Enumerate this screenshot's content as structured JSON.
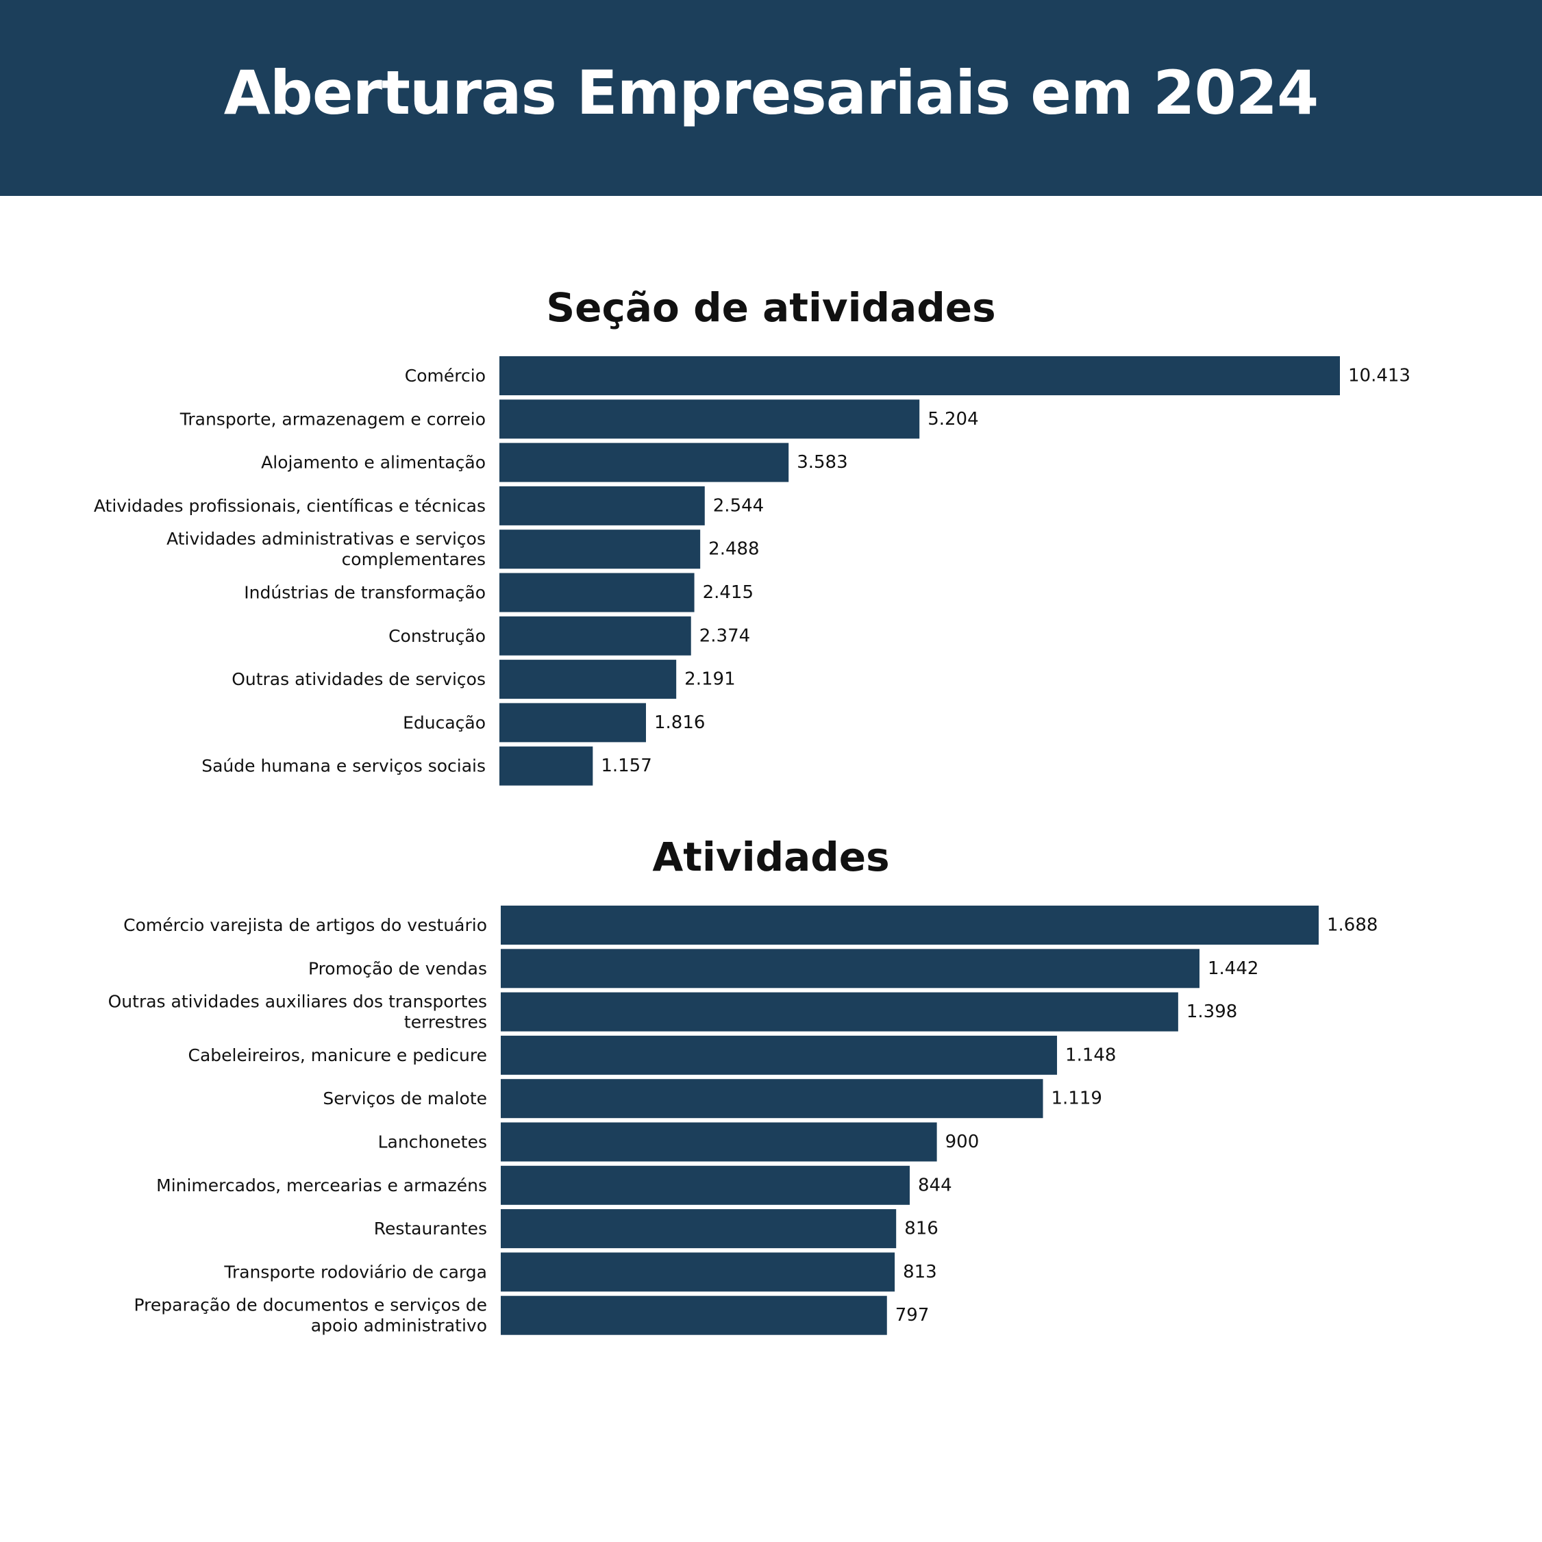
{
  "header": {
    "title": "Aberturas Empresariais em 2024"
  },
  "colors": {
    "banner": "#1c3f5b",
    "bar": "#1c3f5b",
    "text": "#111111"
  },
  "chart_data": [
    {
      "type": "bar",
      "orientation": "horizontal",
      "title": "Seção de atividades",
      "categories": [
        [
          "Comércio"
        ],
        [
          "Transporte, armazenagem e correio"
        ],
        [
          "Alojamento e alimentação"
        ],
        [
          "Atividades profissionais, científicas e técnicas"
        ],
        [
          "Atividades administrativas e serviços",
          "complementares"
        ],
        [
          "Indústrias de transformação"
        ],
        [
          "Construção"
        ],
        [
          "Outras atividades de serviços"
        ],
        [
          "Educação"
        ],
        [
          "Saúde humana e serviços sociais"
        ]
      ],
      "values": [
        10413,
        5204,
        3583,
        2544,
        2488,
        2415,
        2374,
        2191,
        1816,
        1157
      ],
      "value_labels": [
        "10.413",
        "5.204",
        "3.583",
        "2.544",
        "2.488",
        "2.415",
        "2.374",
        "2.191",
        "1.816",
        "1.157"
      ],
      "xlim": [
        0,
        10413
      ],
      "grid": false,
      "legend": "none"
    },
    {
      "type": "bar",
      "orientation": "horizontal",
      "title": "Atividades",
      "categories": [
        [
          "Comércio varejista de artigos do vestuário"
        ],
        [
          "Promoção de vendas"
        ],
        [
          "Outras atividades auxiliares dos transportes",
          "terrestres"
        ],
        [
          "Cabeleireiros, manicure e pedicure"
        ],
        [
          "Serviços de malote"
        ],
        [
          "Lanchonetes"
        ],
        [
          "Minimercados, mercearias e armazéns"
        ],
        [
          "Restaurantes"
        ],
        [
          "Transporte rodoviário de carga"
        ],
        [
          "Preparação de documentos e serviços de",
          "apoio administrativo"
        ]
      ],
      "values": [
        1688,
        1442,
        1398,
        1148,
        1119,
        900,
        844,
        816,
        813,
        797
      ],
      "value_labels": [
        "1.688",
        "1.442",
        "1.398",
        "1.148",
        "1.119",
        "900",
        "844",
        "816",
        "813",
        "797"
      ],
      "xlim": [
        0,
        1688
      ],
      "grid": false,
      "legend": "none"
    }
  ]
}
